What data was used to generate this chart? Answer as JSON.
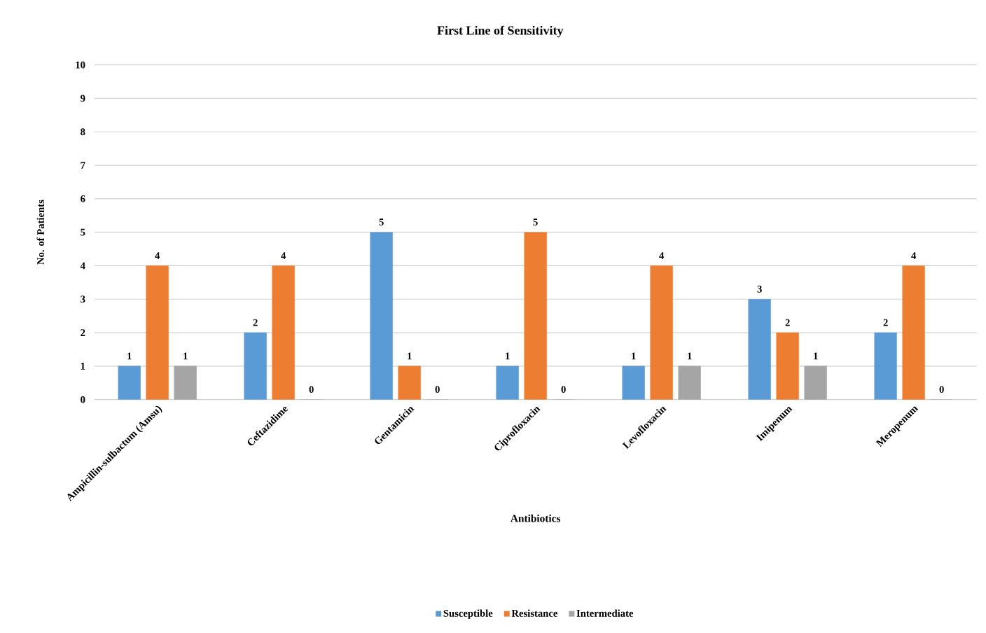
{
  "chart_data": {
    "type": "bar",
    "title": "First Line of Sensitivity",
    "xlabel": "Antibiotics",
    "ylabel": "No. of Patients",
    "categories": [
      "Ampicillin-sulbactum (Amsu)",
      "Ceftazidime",
      "Gentamicin",
      "Ciprofloxacin",
      "Levofloxacin",
      "Imipenum",
      "Meropenum"
    ],
    "series": [
      {
        "name": "Susceptible",
        "color": "#5b9bd5",
        "values": [
          1,
          2,
          5,
          1,
          1,
          3,
          2
        ]
      },
      {
        "name": "Resistance",
        "color": "#ed7d31",
        "values": [
          4,
          4,
          1,
          5,
          4,
          2,
          4
        ]
      },
      {
        "name": "Intermediate",
        "color": "#a5a5a5",
        "values": [
          1,
          0,
          0,
          0,
          1,
          1,
          0
        ]
      }
    ],
    "ylim": [
      0,
      10
    ],
    "yticks": [
      0,
      1,
      2,
      3,
      4,
      5,
      6,
      7,
      8,
      9,
      10
    ],
    "grid": "y",
    "legend": "bottom",
    "data_labels": true
  }
}
